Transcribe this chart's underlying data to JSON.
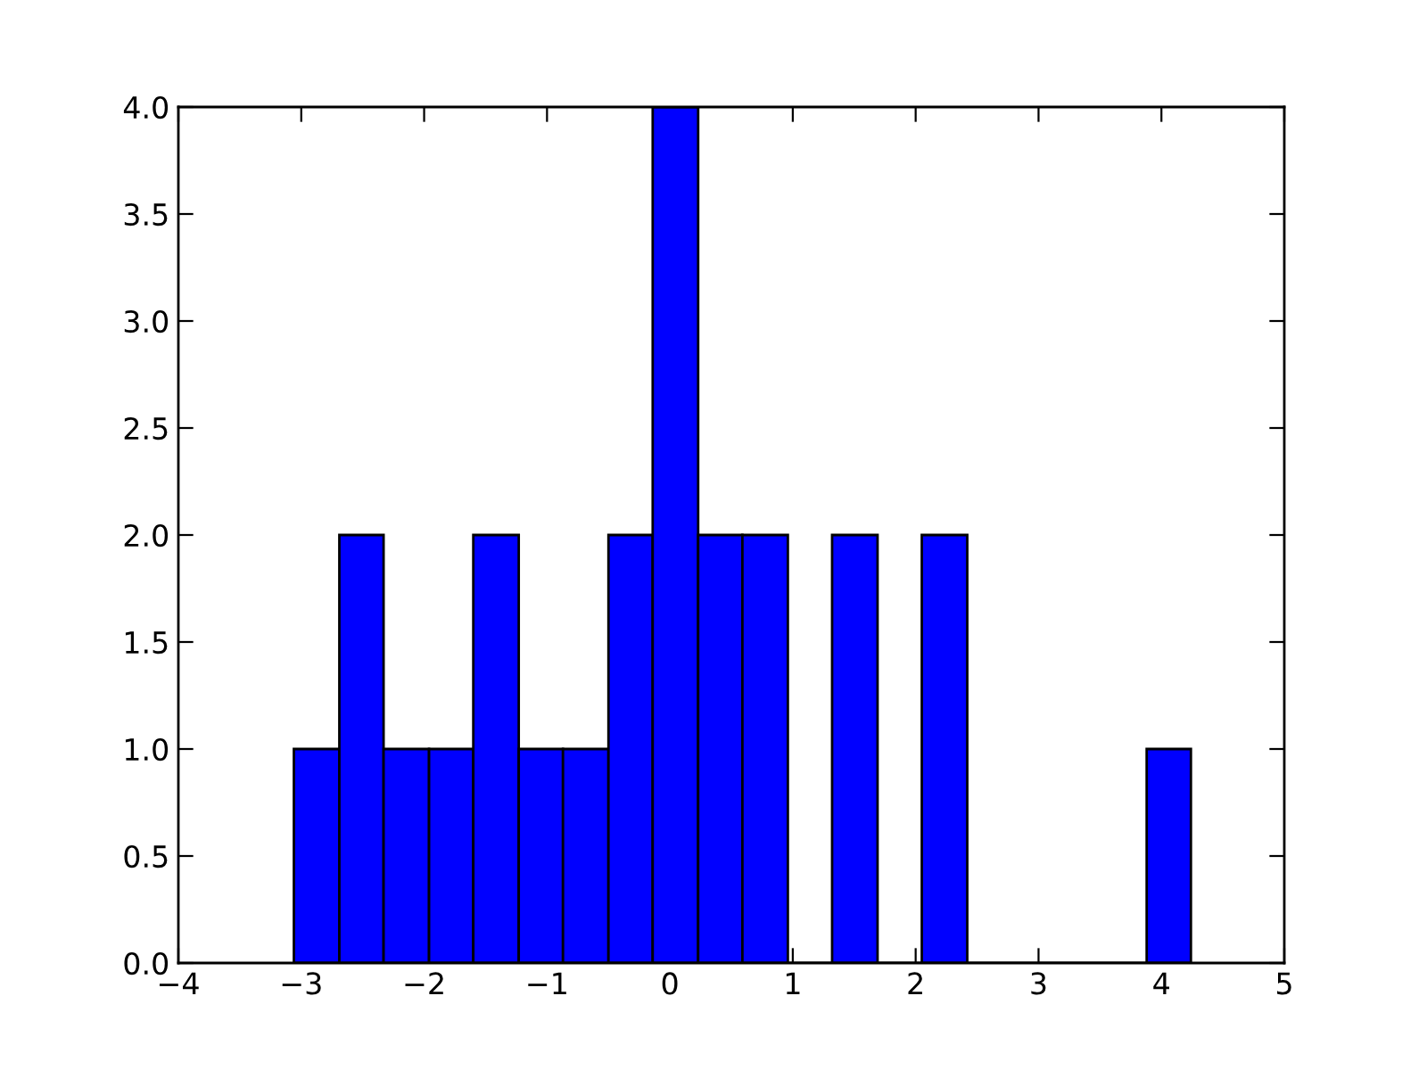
{
  "chart_data": {
    "type": "histogram",
    "bins": [
      -3.06,
      -2.69,
      -2.33,
      -1.96,
      -1.6,
      -1.23,
      -0.87,
      -0.5,
      -0.14,
      0.23,
      0.59,
      0.96,
      1.32,
      1.69,
      2.05,
      2.42,
      3.88,
      4.24
    ],
    "values": [
      1,
      2,
      1,
      1,
      2,
      1,
      1,
      2,
      4,
      2,
      2,
      0,
      2,
      0,
      2,
      0,
      1
    ],
    "color": "#0000ff",
    "xlim": [
      -4,
      5
    ],
    "xticks": [
      {
        "value": -4,
        "label": "−4"
      },
      {
        "value": -3,
        "label": "−3"
      },
      {
        "value": -2,
        "label": "−2"
      },
      {
        "value": -1,
        "label": "−1"
      },
      0,
      1,
      2,
      3,
      4,
      5
    ],
    "ylim": [
      0,
      4
    ],
    "yticks": [
      {
        "value": 0,
        "label": "0.0"
      },
      0.5,
      {
        "value": 1,
        "label": "1.0"
      },
      1.5,
      {
        "value": 2,
        "label": "2.0"
      },
      2.5,
      {
        "value": 3,
        "label": "3.0"
      },
      3.5,
      {
        "value": 4,
        "label": "4.0"
      }
    ],
    "grid": false
  }
}
